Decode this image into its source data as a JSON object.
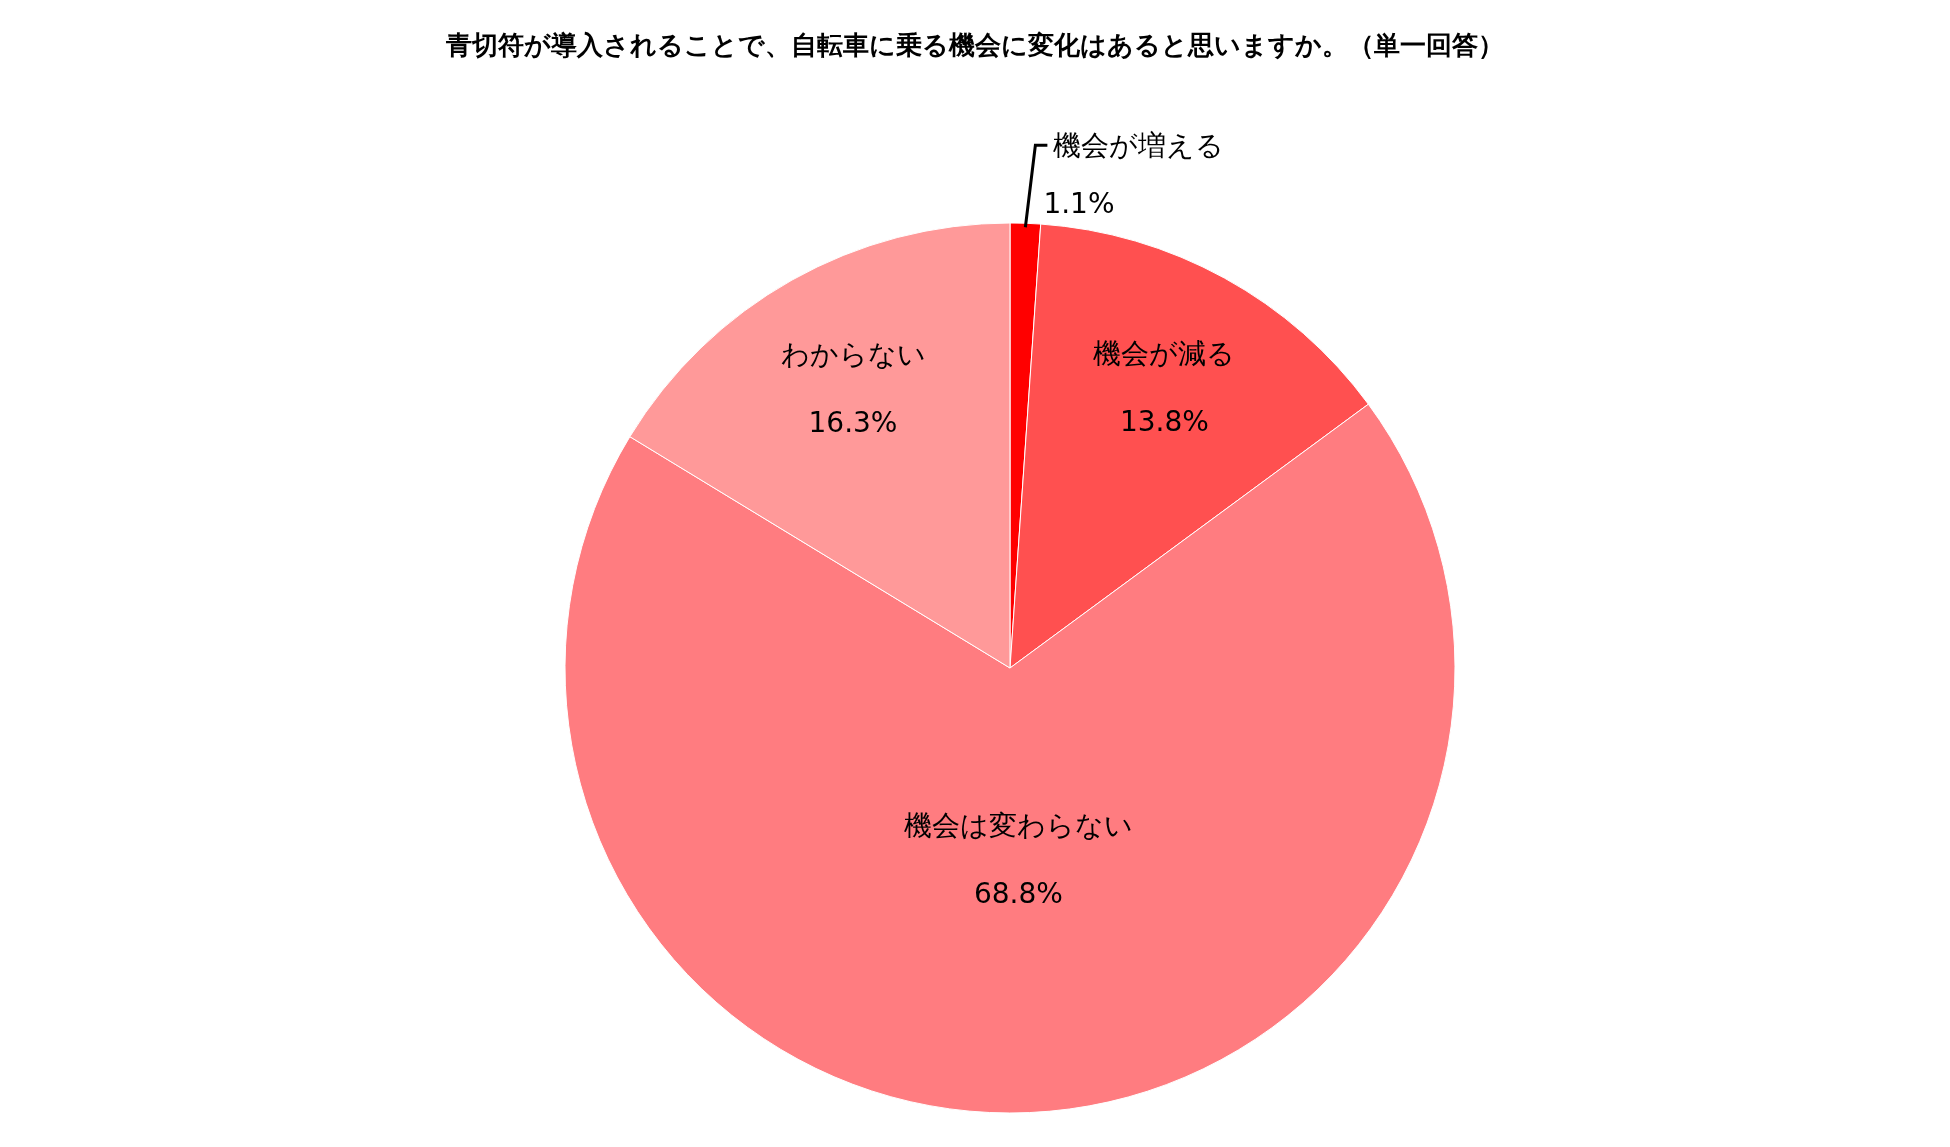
{
  "chart_data": {
    "type": "pie",
    "title": "青切符が導入されることで、自転車に乗る機会に変化はあると思いますか。（単一回答）",
    "categories": [
      "機会が増える",
      "機会が減る",
      "機会は変わらない",
      "わからない"
    ],
    "values": [
      1.1,
      13.8,
      68.8,
      16.3
    ],
    "value_labels": [
      "1.1%",
      "13.8%",
      "68.8%",
      "16.3%"
    ],
    "colors": [
      "#ff0000",
      "#ff5050",
      "#ff7c80",
      "#ff9999"
    ]
  }
}
